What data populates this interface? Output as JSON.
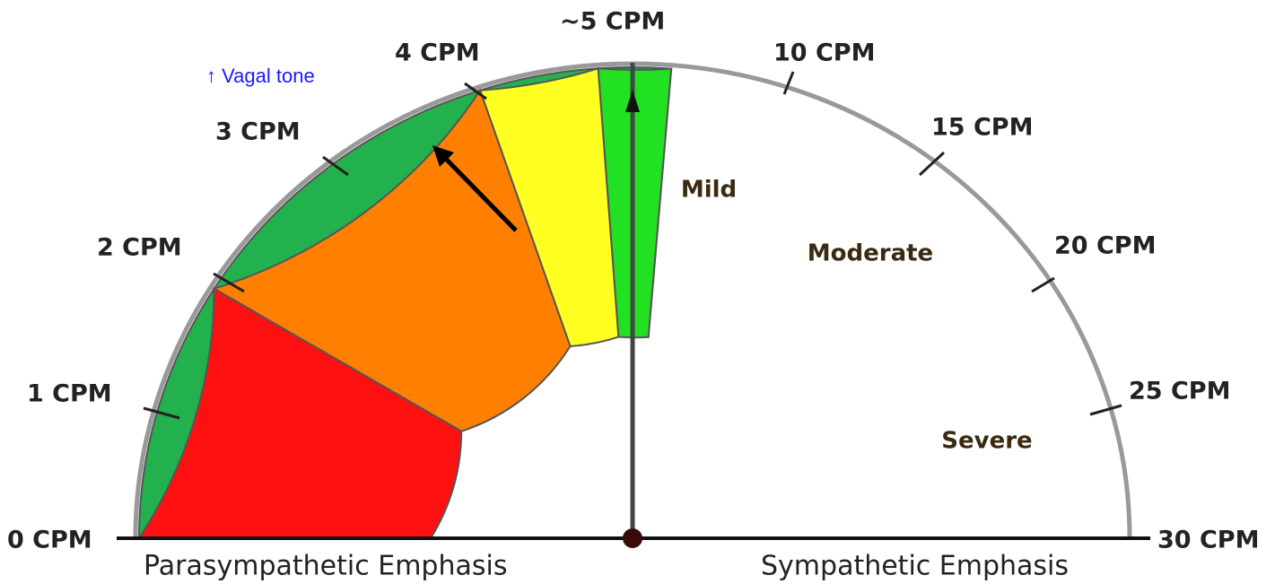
{
  "ticks": [
    "0 CPM",
    "1 CPM",
    "2 CPM",
    "3 CPM",
    "4 CPM",
    "~5 CPM",
    "10 CPM",
    "15 CPM",
    "20 CPM",
    "25 CPM",
    "30 CPM"
  ],
  "zones": [
    "Mild",
    "Moderate",
    "Severe"
  ],
  "annotation": "↑ Vagal tone",
  "footer": {
    "left": "Parasympathetic Emphasis",
    "right": "Sympathetic Emphasis"
  }
}
